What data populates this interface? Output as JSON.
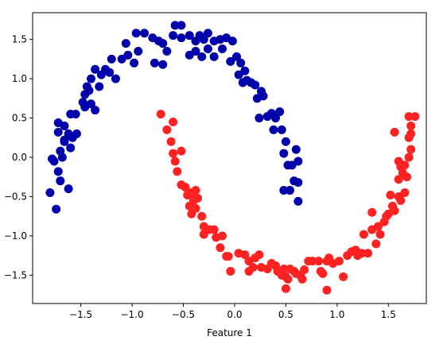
{
  "chart_data": {
    "type": "scatter",
    "title": "",
    "xlabel": "Feature 1",
    "ylabel": "",
    "xlim": [
      -1.97,
      1.87
    ],
    "ylim": [
      -1.86,
      1.84
    ],
    "xticks": [
      -1.5,
      -1.0,
      -0.5,
      0.0,
      0.5,
      1.0,
      1.5
    ],
    "xtick_labels": [
      "−1.5",
      "−1.0",
      "−0.5",
      "0.0",
      "0.5",
      "1.0",
      "1.5"
    ],
    "yticks": [
      1.5,
      1.0,
      0.5,
      0.0,
      -0.5,
      -1.0,
      -1.5
    ],
    "ytick_labels": [
      "1.5",
      "1.0",
      "0.5",
      "0.0",
      "−0.5",
      "−1.0",
      "−1.5"
    ],
    "grid": false,
    "series": [
      {
        "color": "#0000aa",
        "points": [
          [
            -1.8,
            -0.45
          ],
          [
            -1.74,
            -0.66
          ],
          [
            -1.72,
            -0.18
          ],
          [
            -1.78,
            -0.02
          ],
          [
            -1.7,
            -0.3
          ],
          [
            -1.62,
            -0.4
          ],
          [
            -1.76,
            -0.05
          ],
          [
            -1.7,
            0.08
          ],
          [
            -1.68,
            0.0
          ],
          [
            -1.66,
            0.22
          ],
          [
            -1.6,
            0.12
          ],
          [
            -1.58,
            0.25
          ],
          [
            -1.72,
            0.44
          ],
          [
            -1.66,
            0.4
          ],
          [
            -1.72,
            0.32
          ],
          [
            -1.62,
            0.3
          ],
          [
            -1.66,
            0.2
          ],
          [
            -1.6,
            0.55
          ],
          [
            -1.55,
            0.55
          ],
          [
            -1.54,
            0.3
          ],
          [
            -1.48,
            0.7
          ],
          [
            -1.46,
            0.64
          ],
          [
            -1.42,
            0.85
          ],
          [
            -1.4,
            0.68
          ],
          [
            -1.36,
            0.6
          ],
          [
            -1.46,
            0.8
          ],
          [
            -1.44,
            0.9
          ],
          [
            -1.4,
            1.0
          ],
          [
            -1.36,
            1.12
          ],
          [
            -1.32,
            0.9
          ],
          [
            -1.3,
            1.05
          ],
          [
            -1.26,
            1.12
          ],
          [
            -1.22,
            1.08
          ],
          [
            -1.16,
            1.0
          ],
          [
            -1.2,
            1.25
          ],
          [
            -1.1,
            1.25
          ],
          [
            -1.06,
            1.45
          ],
          [
            -1.04,
            1.3
          ],
          [
            -0.96,
            1.58
          ],
          [
            -0.98,
            1.2
          ],
          [
            -0.94,
            1.35
          ],
          [
            -0.88,
            1.58
          ],
          [
            -0.8,
            1.52
          ],
          [
            -0.74,
            1.48
          ],
          [
            -0.7,
            1.45
          ],
          [
            -0.66,
            1.35
          ],
          [
            -0.78,
            1.2
          ],
          [
            -0.7,
            1.18
          ],
          [
            -0.6,
            1.55
          ],
          [
            -0.58,
            1.68
          ],
          [
            -0.52,
            1.68
          ],
          [
            -0.52,
            1.52
          ],
          [
            -0.44,
            1.55
          ],
          [
            -0.38,
            1.48
          ],
          [
            -0.34,
            1.55
          ],
          [
            -0.3,
            1.5
          ],
          [
            -0.26,
            1.58
          ],
          [
            -0.44,
            1.3
          ],
          [
            -0.38,
            1.35
          ],
          [
            -0.32,
            1.28
          ],
          [
            -0.26,
            1.38
          ],
          [
            -0.2,
            1.48
          ],
          [
            -0.2,
            1.28
          ],
          [
            -0.12,
            1.38
          ],
          [
            -0.14,
            1.5
          ],
          [
            -0.08,
            1.52
          ],
          [
            -0.02,
            1.48
          ],
          [
            0.02,
            1.28
          ],
          [
            -0.04,
            1.22
          ],
          [
            0.06,
            1.2
          ],
          [
            0.04,
            1.05
          ],
          [
            0.08,
            0.95
          ],
          [
            0.1,
            1.1
          ],
          [
            0.12,
            0.98
          ],
          [
            0.16,
            0.95
          ],
          [
            0.2,
            0.92
          ],
          [
            0.22,
            0.75
          ],
          [
            0.28,
            0.78
          ],
          [
            0.26,
            0.84
          ],
          [
            0.24,
            0.5
          ],
          [
            0.32,
            0.52
          ],
          [
            0.36,
            0.56
          ],
          [
            0.4,
            0.5
          ],
          [
            0.44,
            0.58
          ],
          [
            0.38,
            0.35
          ],
          [
            0.46,
            0.35
          ],
          [
            0.5,
            0.2
          ],
          [
            0.48,
            0.05
          ],
          [
            0.52,
            -0.1
          ],
          [
            0.56,
            -0.1
          ],
          [
            0.6,
            0.1
          ],
          [
            0.62,
            -0.05
          ],
          [
            0.58,
            -0.3
          ],
          [
            0.62,
            -0.32
          ],
          [
            0.54,
            -0.42
          ],
          [
            0.48,
            -0.42
          ],
          [
            0.62,
            -0.56
          ]
        ]
      },
      {
        "color": "#ff2222",
        "points": [
          [
            -0.72,
            0.55
          ],
          [
            -0.66,
            0.35
          ],
          [
            -0.6,
            0.45
          ],
          [
            -0.62,
            0.2
          ],
          [
            -0.6,
            0.05
          ],
          [
            -0.58,
            -0.05
          ],
          [
            -0.52,
            0.08
          ],
          [
            -0.56,
            -0.18
          ],
          [
            -0.52,
            -0.35
          ],
          [
            -0.48,
            -0.38
          ],
          [
            -0.46,
            -0.48
          ],
          [
            -0.42,
            -0.45
          ],
          [
            -0.4,
            -0.55
          ],
          [
            -0.44,
            -0.62
          ],
          [
            -0.38,
            -0.42
          ],
          [
            -0.38,
            -0.65
          ],
          [
            -0.36,
            -0.52
          ],
          [
            -0.42,
            -0.72
          ],
          [
            -0.32,
            -0.75
          ],
          [
            -0.3,
            -0.88
          ],
          [
            -0.24,
            -0.92
          ],
          [
            -0.2,
            -0.92
          ],
          [
            -0.3,
            -0.98
          ],
          [
            -0.18,
            -1.02
          ],
          [
            -0.12,
            -1.0
          ],
          [
            -0.14,
            -1.15
          ],
          [
            -0.08,
            -1.26
          ],
          [
            -0.06,
            -1.26
          ],
          [
            -0.04,
            -1.45
          ],
          [
            0.04,
            -1.22
          ],
          [
            0.1,
            -1.24
          ],
          [
            0.14,
            -1.32
          ],
          [
            0.2,
            -1.28
          ],
          [
            0.14,
            -1.45
          ],
          [
            0.18,
            -1.4
          ],
          [
            0.24,
            -1.24
          ],
          [
            0.26,
            -1.4
          ],
          [
            0.32,
            -1.42
          ],
          [
            0.36,
            -1.35
          ],
          [
            0.4,
            -1.38
          ],
          [
            0.42,
            -1.45
          ],
          [
            0.46,
            -1.5
          ],
          [
            0.48,
            -1.42
          ],
          [
            0.5,
            -1.52
          ],
          [
            0.52,
            -1.55
          ],
          [
            0.54,
            -1.42
          ],
          [
            0.5,
            -1.67
          ],
          [
            0.58,
            -1.45
          ],
          [
            0.6,
            -1.48
          ],
          [
            0.64,
            -1.5
          ],
          [
            0.66,
            -1.55
          ],
          [
            0.68,
            -1.43
          ],
          [
            0.72,
            -1.32
          ],
          [
            0.76,
            -1.32
          ],
          [
            0.82,
            -1.32
          ],
          [
            0.84,
            -1.45
          ],
          [
            0.86,
            -1.48
          ],
          [
            0.9,
            -1.32
          ],
          [
            0.92,
            -1.28
          ],
          [
            0.9,
            -1.69
          ],
          [
            0.96,
            -1.35
          ],
          [
            1.02,
            -1.32
          ],
          [
            1.06,
            -1.52
          ],
          [
            1.1,
            -1.25
          ],
          [
            1.14,
            -1.2
          ],
          [
            1.18,
            -1.18
          ],
          [
            1.2,
            -1.25
          ],
          [
            1.24,
            -1.22
          ],
          [
            1.26,
            -0.98
          ],
          [
            1.3,
            -1.22
          ],
          [
            1.34,
            -0.92
          ],
          [
            1.34,
            -0.7
          ],
          [
            1.38,
            -1.1
          ],
          [
            1.4,
            -0.88
          ],
          [
            1.42,
            -0.98
          ],
          [
            1.46,
            -0.82
          ],
          [
            1.48,
            -0.75
          ],
          [
            1.5,
            -0.72
          ],
          [
            1.54,
            -0.62
          ],
          [
            1.56,
            -0.68
          ],
          [
            1.52,
            -0.48
          ],
          [
            1.56,
            0.32
          ],
          [
            1.6,
            -0.5
          ],
          [
            1.62,
            -0.55
          ],
          [
            1.6,
            -0.28
          ],
          [
            1.6,
            -0.05
          ],
          [
            1.62,
            -0.12
          ],
          [
            1.64,
            -0.2
          ],
          [
            1.66,
            -0.1
          ],
          [
            1.68,
            -0.25
          ],
          [
            1.7,
            0.0
          ],
          [
            1.72,
            0.1
          ],
          [
            1.7,
            0.25
          ],
          [
            1.72,
            0.3
          ],
          [
            1.72,
            0.4
          ],
          [
            1.7,
            0.52
          ],
          [
            1.76,
            0.52
          ],
          [
            1.66,
            -0.45
          ]
        ]
      }
    ]
  }
}
